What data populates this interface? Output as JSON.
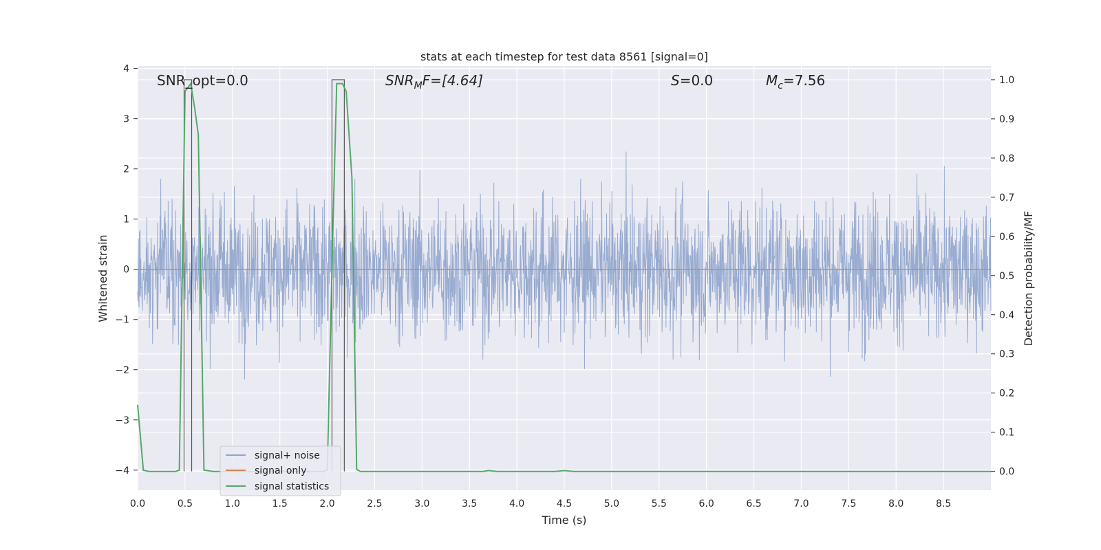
{
  "chart_data": {
    "type": "line",
    "title": "stats at each timestep for test data 8561 [signal=0]",
    "xlabel": "Time (s)",
    "ylabel_left": "Whitened strain",
    "ylabel_right": "Detection probability/MF",
    "xlim": [
      0.0,
      9.0
    ],
    "ylim_left": [
      -4.4,
      4.05
    ],
    "ylim_right": [
      -0.048,
      1.035
    ],
    "x_ticks": [
      "0.0",
      "0.5",
      "1.0",
      "1.5",
      "2.0",
      "2.5",
      "3.0",
      "3.5",
      "4.0",
      "4.5",
      "5.0",
      "5.5",
      "6.0",
      "6.5",
      "7.0",
      "7.5",
      "8.0",
      "8.5"
    ],
    "y_left_ticks": [
      "4",
      "3",
      "2",
      "1",
      "0",
      "−1",
      "−2",
      "−3",
      "−4"
    ],
    "y_right_ticks": [
      "0.0",
      "0.1",
      "0.2",
      "0.3",
      "0.4",
      "0.5",
      "0.6",
      "0.7",
      "0.8",
      "0.9",
      "1.0"
    ],
    "grid": true,
    "legend_placement": "lower-left",
    "annotations": {
      "snr_opt": "SNR_opt=0.0",
      "snr_mf_base": "SNR",
      "snr_mf_sub": "M",
      "snr_mf_rest": "F=[4.64]",
      "s_label": "S",
      "s_rest": "=0.0",
      "mc_base": "M",
      "mc_sub": "c",
      "mc_rest": "=7.56"
    },
    "series": [
      {
        "name": "signal+ noise",
        "color": "#8fa4cc",
        "description_range": [
          -4.0,
          3.7
        ],
        "typical_envelope": [
          -1.6,
          1.4
        ]
      },
      {
        "name": "signal only",
        "color": "#dd8452",
        "x": [
          0.0,
          9.0
        ],
        "values": [
          0.0,
          0.0
        ]
      },
      {
        "name": "signal statistics",
        "color": "#55a868",
        "axis": "right",
        "x": [
          0.0,
          0.06,
          0.12,
          0.2,
          0.3,
          0.4,
          0.44,
          0.5,
          0.56,
          0.6,
          0.64,
          0.7,
          0.8,
          1.0,
          1.2,
          1.4,
          1.6,
          1.8,
          1.96,
          2.0,
          2.06,
          2.1,
          2.16,
          2.2,
          2.26,
          2.31,
          2.35,
          2.4,
          2.6,
          3.0,
          3.5,
          3.64,
          3.7,
          3.8,
          4.0,
          4.4,
          4.5,
          4.6,
          5.0,
          5.5,
          6.0,
          6.5,
          7.0,
          7.5,
          8.0,
          8.5,
          9.0
        ],
        "values": [
          0.17,
          0.003,
          0.0,
          0.0,
          0.0,
          0.0,
          0.003,
          0.97,
          0.99,
          0.93,
          0.86,
          0.003,
          0.0,
          0.0,
          0.0,
          0.0,
          0.0,
          0.0,
          0.0,
          0.003,
          0.62,
          0.99,
          0.99,
          0.97,
          0.75,
          0.005,
          0.0,
          0.0,
          0.0,
          0.0,
          0.0,
          0.0,
          0.002,
          0.0,
          0.0,
          0.0,
          0.002,
          0.0,
          0.0,
          0.0,
          0.0,
          0.0,
          0.0,
          0.0,
          0.0,
          0.0,
          0.0
        ]
      }
    ],
    "markers": [
      {
        "x_start": 0.49,
        "x_end": 0.57,
        "top": 1.0
      },
      {
        "x_start": 2.05,
        "x_end": 2.18,
        "top": 1.0
      }
    ]
  }
}
